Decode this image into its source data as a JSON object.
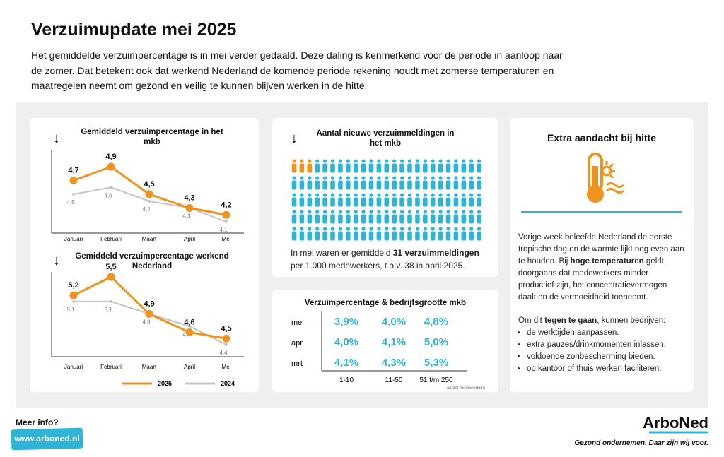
{
  "header": {
    "title": "Verzuimupdate mei 2025",
    "intro": "Het gemiddelde verzuimpercentage is in mei verder gedaald. Deze daling is kenmerkend voor de periode in aanloop naar de zomer. Dat betekent ook dat werkend Nederland de komende periode rekening houdt met zomerse temperaturen en maatregelen neemt om gezond en veilig te kunnen blijven werken in de hitte."
  },
  "charts": [
    {
      "type": "line",
      "title": "Gemiddeld verzuimpercentage in het mkb",
      "categories": [
        "Januari",
        "Februari",
        "Maart",
        "April",
        "Mei"
      ],
      "series": [
        {
          "color": "#f0921e",
          "values": [
            4.7,
            4.9,
            4.5,
            4.3,
            4.2
          ],
          "value_labels": [
            "4,7",
            "4,9",
            "4,5",
            "4,3",
            "4,2"
          ]
        },
        {
          "color": "#c4c4c4",
          "values": [
            4.5,
            4.6,
            4.4,
            4.3,
            4.1
          ],
          "value_labels": [
            "4,5",
            "4,6",
            "4,4",
            "4,3",
            "4,1"
          ]
        }
      ]
    },
    {
      "type": "line",
      "title": "Gemiddeld verzuimpercentage werkend Nederland",
      "categories": [
        "Januari",
        "Februari",
        "Maart",
        "April",
        "Mei"
      ],
      "series": [
        {
          "name": "2025",
          "color": "#f0921e",
          "values": [
            5.2,
            5.5,
            4.9,
            4.6,
            4.5
          ],
          "value_labels": [
            "5,2",
            "5,5",
            "4,9",
            "4,6",
            "4,5"
          ]
        },
        {
          "name": "2024",
          "color": "#c4c4c4",
          "values": [
            5.1,
            5.1,
            4.9,
            4.7,
            4.4
          ],
          "value_labels": [
            "5,1",
            "5,1",
            "4,9",
            "4,7",
            "4,4"
          ]
        }
      ]
    }
  ],
  "pictogram": {
    "title": "Aantal nieuwe verzuimmeldingen in het mkb",
    "caption": [
      "In mei waren er gemiddeld ",
      "31 verzuimmeldingen",
      " per 1.000 medewerkers, t.o.v. 38 in april 2025."
    ]
  },
  "table": {
    "title": "Verzuimpercentage & bedrijfsgrootte mkb",
    "columns": [
      "1-10",
      "11-50",
      "51 t/m 250"
    ],
    "note": "aantal medewerkers",
    "rows": [
      {
        "label": "mei",
        "cells": [
          "3,9%",
          "4,0%",
          "4,8%"
        ]
      },
      {
        "label": "apr",
        "cells": [
          "4,0%",
          "4,1%",
          "5,0%"
        ]
      },
      {
        "label": "mrt",
        "cells": [
          "4,1%",
          "4,3%",
          "5,3%"
        ]
      }
    ]
  },
  "info": {
    "title": "Extra aandacht bij hitte",
    "paragraph": [
      "Vorige week beleefde Nederland de eerste tropische dag en de warmte lijkt nog even aan te houden. Bij ",
      "hoge temperaturen",
      " geldt doorgaans dat medewerkers minder productief zijn, het concentratievermogen daalt en de vermoeidheid toeneemt."
    ],
    "lead": [
      "Om dit ",
      "tegen te gaan",
      ", kunnen bedrijven:"
    ],
    "bullets": [
      "de werktijden aanpassen.",
      "extra pauzes/drinkmomenten inlassen.",
      "voldoende zonbescherming bieden.",
      "op kantoor of thuis werken faciliteren."
    ]
  },
  "footer": {
    "more": "Meer info?",
    "url": "www.arboned.nl",
    "brand": "ArboNed",
    "tagline": "Gezond ondernemen. Daar zijn wij voor."
  }
}
